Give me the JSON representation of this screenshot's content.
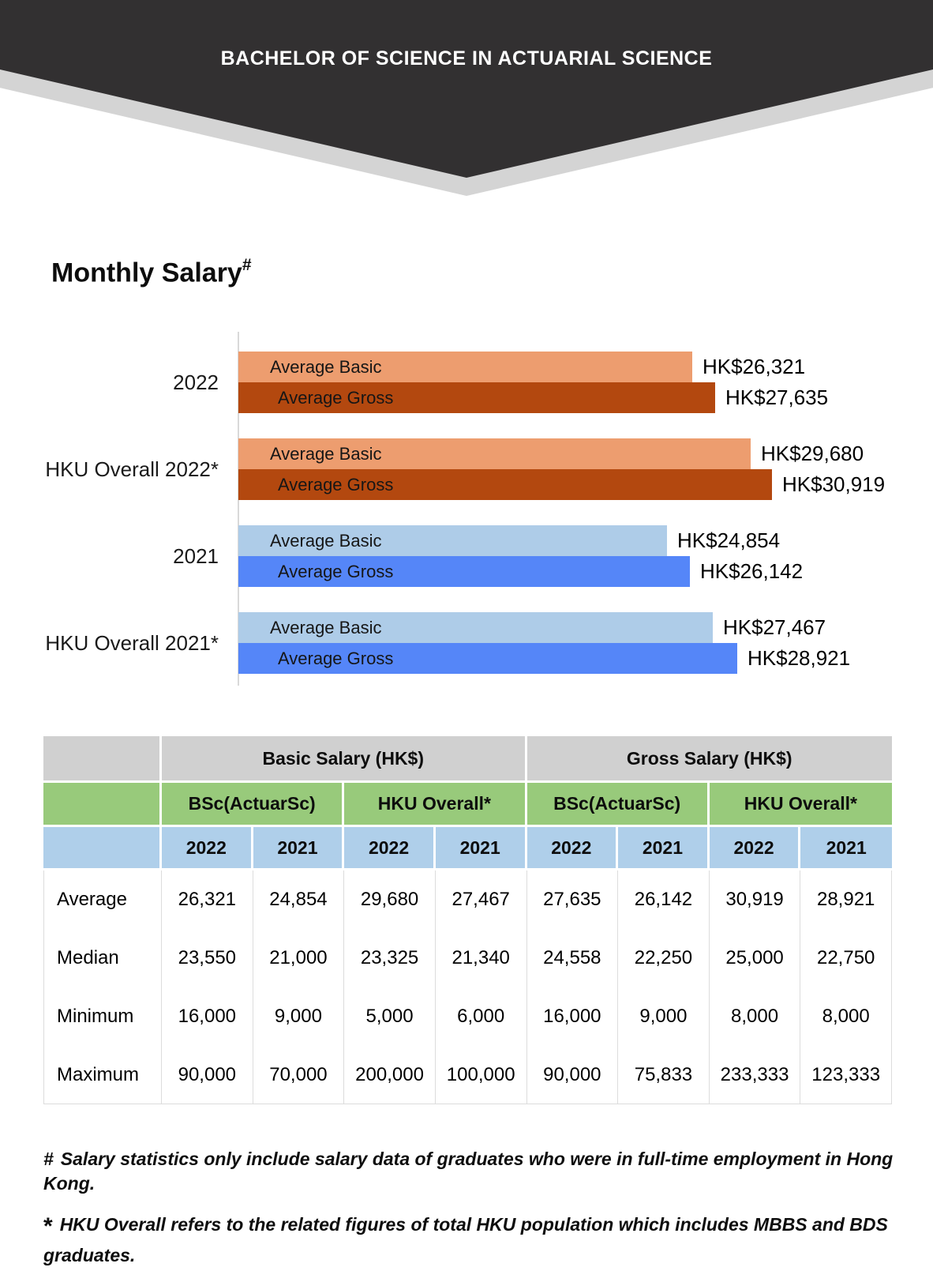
{
  "banner": {
    "title": "BACHELOR OF SCIENCE IN ACTUARIAL SCIENCE",
    "dark_color": "#323031",
    "shadow_color": "#D4D4D4"
  },
  "heading": {
    "text": "Monthly Salary",
    "superscript": "#"
  },
  "chart_data": {
    "type": "bar",
    "orientation": "horizontal",
    "title": "Monthly Salary",
    "categories": [
      "2022",
      "HKU Overall 2022*",
      "2021",
      "HKU Overall 2021*"
    ],
    "series": [
      {
        "name": "Average Basic",
        "values": [
          26321,
          29680,
          24854,
          27467
        ]
      },
      {
        "name": "Average Gross",
        "values": [
          27635,
          30919,
          26142,
          28921
        ]
      }
    ],
    "value_labels": [
      [
        "HK$26,321",
        "HK$27,635"
      ],
      [
        "HK$29,680",
        "HK$30,919"
      ],
      [
        "HK$24,854",
        "HK$26,142"
      ],
      [
        "HK$27,467",
        "HK$28,921"
      ]
    ],
    "bar_colors": [
      [
        "#ED9D6F",
        "#B3480F"
      ],
      [
        "#ED9D6F",
        "#B3480F"
      ],
      [
        "#AECCE8",
        "#5586F8"
      ],
      [
        "#AECCE8",
        "#5586F8"
      ]
    ],
    "xlim": [
      0,
      30919
    ],
    "grid": false,
    "legend_position": "none",
    "axis_color": "#D9D9D9"
  },
  "table": {
    "group_headers": [
      {
        "label": "Basic Salary (HK$)"
      },
      {
        "label": "Gross Salary (HK$)"
      }
    ],
    "subgroup_headers": [
      "BSc(ActuarSc)",
      "HKU Overall*",
      "BSc(ActuarSc)",
      "HKU Overall*"
    ],
    "year_headers": [
      "2022",
      "2021",
      "2022",
      "2021",
      "2022",
      "2021",
      "2022",
      "2021"
    ],
    "rows": [
      {
        "label": "Average",
        "values": [
          "26,321",
          "24,854",
          "29,680",
          "27,467",
          "27,635",
          "26,142",
          "30,919",
          "28,921"
        ]
      },
      {
        "label": "Median",
        "values": [
          "23,550",
          "21,000",
          "23,325",
          "21,340",
          "24,558",
          "22,250",
          "25,000",
          "22,750"
        ]
      },
      {
        "label": "Minimum",
        "values": [
          "16,000",
          "9,000",
          "5,000",
          "6,000",
          "16,000",
          "9,000",
          "8,000",
          "8,000"
        ]
      },
      {
        "label": "Maximum",
        "values": [
          "90,000",
          "70,000",
          "200,000",
          "100,000",
          "90,000",
          "75,833",
          "233,333",
          "123,333"
        ]
      }
    ],
    "colors": {
      "group_header_bg": "#D0D0D0",
      "subgroup_header_bg": "#98CA7B",
      "year_header_bg": "#AFCFEA"
    }
  },
  "footnotes": [
    {
      "symbol": "#",
      "text": "Salary statistics only include salary data of graduates who were in full-time employment in Hong Kong."
    },
    {
      "symbol": "*",
      "text": "HKU Overall refers to the related figures of total HKU population which includes MBBS and BDS graduates."
    }
  ]
}
